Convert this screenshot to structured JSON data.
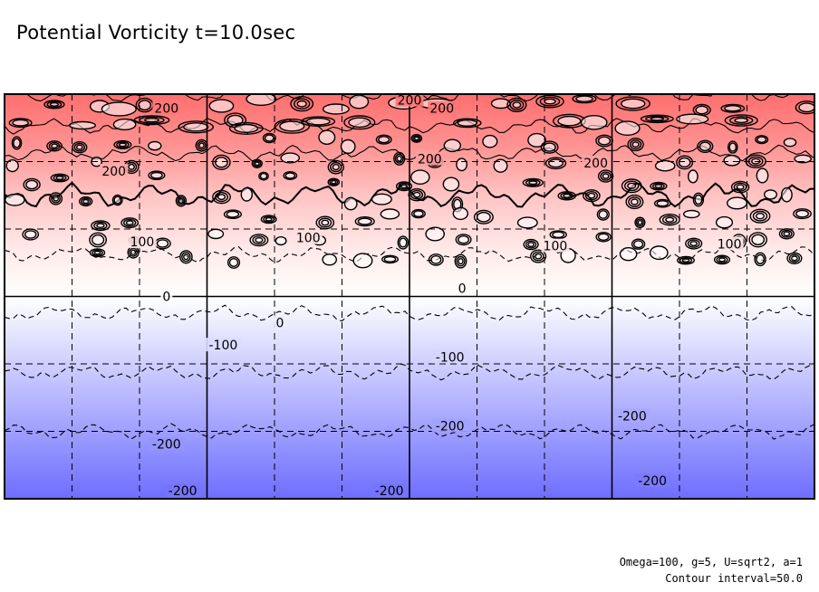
{
  "title": "Potential Vorticity t=10.0sec",
  "footer": {
    "params": "Omega=100, g=5, U=sqrt2, a=1",
    "interval": "Contour interval=50.0"
  },
  "chart_data": {
    "type": "heatmap",
    "title": "Potential Vorticity t=10.0sec",
    "xlabel": "",
    "ylabel": "",
    "contour_interval": 50.0,
    "colorscale": {
      "positive": "#ff6e6e",
      "zero": "#ffffff",
      "negative": "#6e6eff"
    },
    "profile": [
      {
        "y": 1.0,
        "value": 240
      },
      {
        "y": 0.75,
        "value": 180
      },
      {
        "y": 0.5,
        "value": 100
      },
      {
        "y": 0.25,
        "value": 40
      },
      {
        "y": 0.0,
        "value": 0
      },
      {
        "y": -0.25,
        "value": -60
      },
      {
        "y": -0.5,
        "value": -120
      },
      {
        "y": -0.75,
        "value": -180
      },
      {
        "y": -1.0,
        "value": -240
      }
    ],
    "contour_labels": [
      {
        "text": "200",
        "x": 0.0,
        "y": 0.97
      },
      {
        "text": "200",
        "x": -0.6,
        "y": 0.93
      },
      {
        "text": "200",
        "x": 0.08,
        "y": 0.93
      },
      {
        "text": "200",
        "x": -0.73,
        "y": 0.62
      },
      {
        "text": "200",
        "x": 0.05,
        "y": 0.68
      },
      {
        "text": "200",
        "x": 0.46,
        "y": 0.66
      },
      {
        "text": "100",
        "x": -0.66,
        "y": 0.27
      },
      {
        "text": "100",
        "x": -0.25,
        "y": 0.29
      },
      {
        "text": "100",
        "x": 0.36,
        "y": 0.25
      },
      {
        "text": "100",
        "x": 0.79,
        "y": 0.26
      },
      {
        "text": "0",
        "x": -0.6,
        "y": 0.0
      },
      {
        "text": "0",
        "x": 0.13,
        "y": 0.04
      },
      {
        "text": "0",
        "x": -0.32,
        "y": -0.13
      },
      {
        "text": "-100",
        "x": -0.46,
        "y": -0.24
      },
      {
        "text": "-100",
        "x": 0.1,
        "y": -0.3
      },
      {
        "text": "-200",
        "x": -0.6,
        "y": -0.73
      },
      {
        "text": "-200",
        "x": 0.1,
        "y": -0.64
      },
      {
        "text": "-200",
        "x": 0.55,
        "y": -0.59
      },
      {
        "text": "-200",
        "x": -0.56,
        "y": -0.96
      },
      {
        "text": "-200",
        "x": -0.05,
        "y": -0.96
      },
      {
        "text": "-200",
        "x": 0.6,
        "y": -0.91
      }
    ],
    "xlim": [
      -1,
      1
    ],
    "ylim": [
      -1,
      1
    ],
    "grid": true,
    "legend": "none"
  }
}
